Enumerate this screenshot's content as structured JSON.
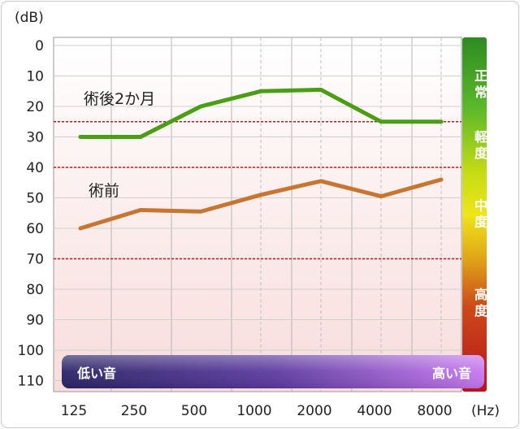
{
  "chart_data": {
    "type": "line",
    "ylabel": "(dB)",
    "xlabel": "(Hz)",
    "categories": [
      "125",
      "250",
      "500",
      "1000",
      "2000",
      "4000",
      "8000"
    ],
    "y_ticks": [
      "0",
      "10",
      "20",
      "30",
      "40",
      "50",
      "60",
      "70",
      "80",
      "90",
      "100",
      "110"
    ],
    "ylim": [
      0,
      115
    ],
    "y_inverted": true,
    "grid": true,
    "threshold_lines": [
      25,
      40,
      70
    ],
    "series": [
      {
        "name": "術後2か月",
        "values": [
          30,
          30,
          20,
          15,
          14.5,
          25,
          25
        ],
        "color": "#4a9e14"
      },
      {
        "name": "術前",
        "values": [
          60,
          54,
          54.5,
          49,
          44.5,
          49.5,
          44
        ],
        "color": "#c87530"
      }
    ],
    "severity_bands": [
      {
        "label": "正常",
        "from": 0,
        "to": 25
      },
      {
        "label": "軽度",
        "from": 25,
        "to": 40
      },
      {
        "label": "中度",
        "from": 40,
        "to": 70
      },
      {
        "label": "高度",
        "from": 70,
        "to": 115
      }
    ],
    "range_bar": {
      "low_label": "低い音",
      "high_label": "高い音"
    }
  }
}
